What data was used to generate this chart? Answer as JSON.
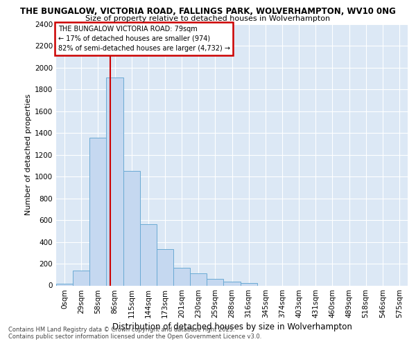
{
  "title1": "THE BUNGALOW, VICTORIA ROAD, FALLINGS PARK, WOLVERHAMPTON, WV10 0NG",
  "title2": "Size of property relative to detached houses in Wolverhampton",
  "xlabel": "Distribution of detached houses by size in Wolverhampton",
  "ylabel": "Number of detached properties",
  "footnote1": "Contains HM Land Registry data © Crown copyright and database right 2025.",
  "footnote2": "Contains public sector information licensed under the Open Government Licence v3.0.",
  "bar_labels": [
    "0sqm",
    "29sqm",
    "58sqm",
    "86sqm",
    "115sqm",
    "144sqm",
    "173sqm",
    "201sqm",
    "230sqm",
    "259sqm",
    "288sqm",
    "316sqm",
    "345sqm",
    "374sqm",
    "403sqm",
    "431sqm",
    "460sqm",
    "489sqm",
    "518sqm",
    "546sqm",
    "575sqm"
  ],
  "bar_values": [
    15,
    135,
    1360,
    1910,
    1055,
    560,
    335,
    165,
    110,
    60,
    35,
    25,
    0,
    0,
    0,
    0,
    0,
    0,
    0,
    0,
    0
  ],
  "bar_color": "#c5d8f0",
  "bar_edge_color": "#6aaad4",
  "fig_bg_color": "#ffffff",
  "plot_bg_color": "#dce8f5",
  "grid_color": "#ffffff",
  "vline_color": "#cc0000",
  "vline_x_index": 2.72,
  "annotation_line1": "THE BUNGALOW VICTORIA ROAD: 79sqm",
  "annotation_line2": "← 17% of detached houses are smaller (974)",
  "annotation_line3": "82% of semi-detached houses are larger (4,732) →",
  "annotation_box_color": "#cc0000",
  "ylim": [
    0,
    2400
  ],
  "yticks": [
    0,
    200,
    400,
    600,
    800,
    1000,
    1200,
    1400,
    1600,
    1800,
    2000,
    2200,
    2400
  ],
  "title1_fontsize": 8.5,
  "title2_fontsize": 8.0,
  "ylabel_fontsize": 8.0,
  "xlabel_fontsize": 8.5,
  "tick_fontsize": 7.5,
  "footnote_fontsize": 6.0
}
